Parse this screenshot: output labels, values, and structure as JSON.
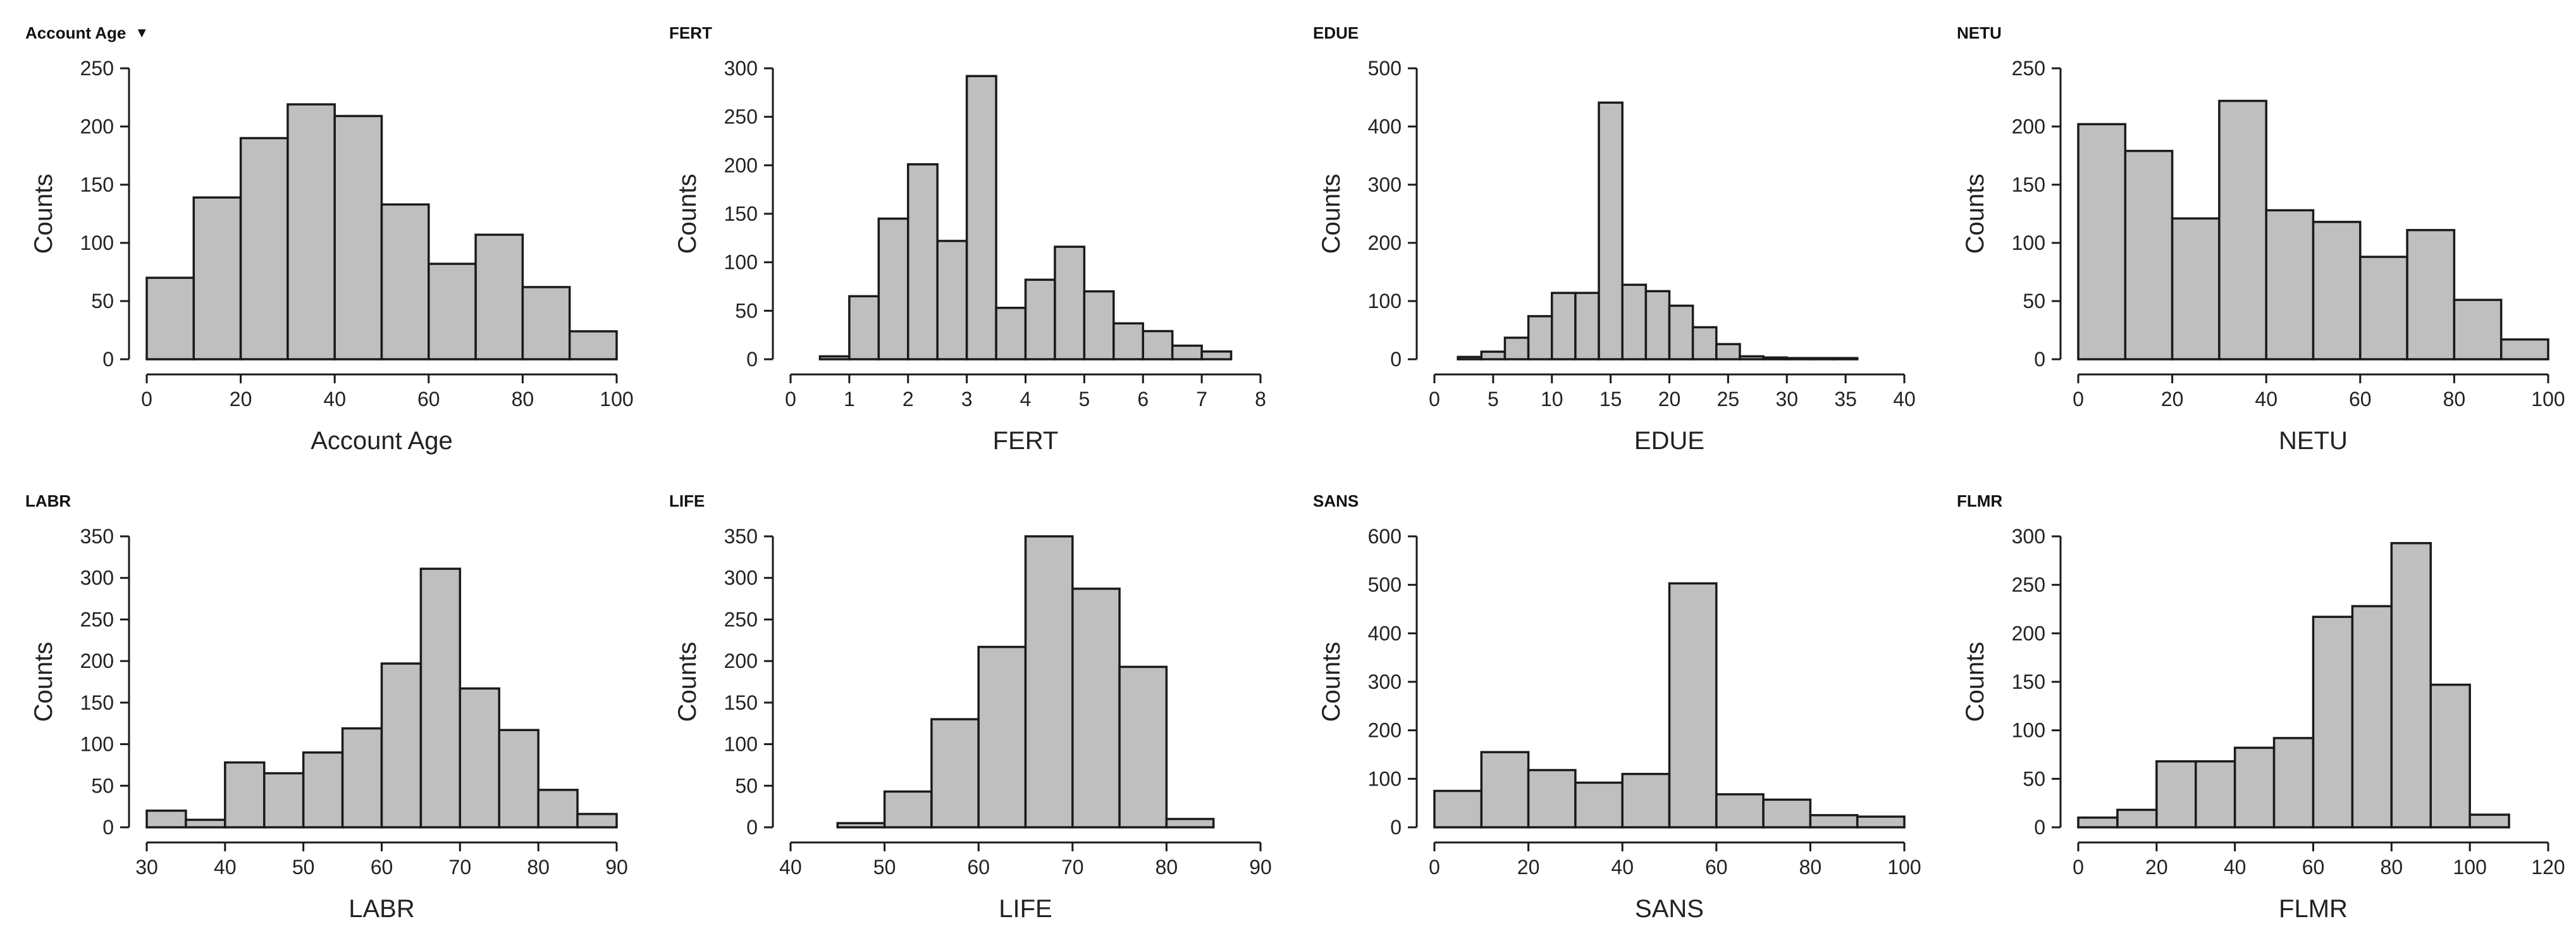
{
  "colors": {
    "bar_fill": "#bfbfbf",
    "bar_stroke": "#1a1a1a",
    "text": "#222222",
    "background": "#ffffff"
  },
  "chart_data": [
    {
      "type": "bar",
      "header": "Account Age",
      "header_icon": "dropdown-triangle",
      "header_glyph": "▼",
      "xlabel": "Account Age",
      "ylabel": "Counts",
      "xlim": [
        0,
        100
      ],
      "ylim": [
        0,
        250
      ],
      "xticks": [
        0,
        20,
        40,
        60,
        80,
        100
      ],
      "yticks": [
        0,
        50,
        100,
        150,
        200,
        250
      ],
      "bins": [
        [
          0,
          10
        ],
        [
          10,
          20
        ],
        [
          20,
          30
        ],
        [
          30,
          40
        ],
        [
          40,
          50
        ],
        [
          50,
          60
        ],
        [
          60,
          70
        ],
        [
          70,
          80
        ],
        [
          80,
          90
        ],
        [
          90,
          100
        ]
      ],
      "values": [
        70,
        139,
        190,
        219,
        209,
        133,
        82,
        107,
        62,
        24
      ]
    },
    {
      "type": "bar",
      "header": "FERT",
      "xlabel": "FERT",
      "ylabel": "Counts",
      "xlim": [
        0,
        8
      ],
      "ylim": [
        0,
        300
      ],
      "xticks": [
        0,
        1,
        2,
        3,
        4,
        5,
        6,
        7,
        8
      ],
      "yticks": [
        0,
        50,
        100,
        150,
        200,
        250,
        300
      ],
      "bins": [
        [
          0.5,
          1
        ],
        [
          1,
          1.5
        ],
        [
          1.5,
          2
        ],
        [
          2,
          2.5
        ],
        [
          2.5,
          3
        ],
        [
          3,
          3.5
        ],
        [
          3.5,
          4
        ],
        [
          4,
          4.5
        ],
        [
          4.5,
          5
        ],
        [
          5,
          5.5
        ],
        [
          5.5,
          6
        ],
        [
          6,
          6.5
        ],
        [
          6.5,
          7
        ],
        [
          7,
          7.5
        ]
      ],
      "values": [
        3,
        65,
        145,
        201,
        122,
        292,
        53,
        82,
        116,
        70,
        37,
        29,
        14,
        8
      ]
    },
    {
      "type": "bar",
      "header": "EDUE",
      "xlabel": "EDUE",
      "ylabel": "Counts",
      "xlim": [
        0,
        40
      ],
      "ylim": [
        0,
        500
      ],
      "xticks": [
        0,
        5,
        10,
        15,
        20,
        25,
        30,
        35,
        40
      ],
      "yticks": [
        0,
        100,
        200,
        300,
        400,
        500
      ],
      "bins": [
        [
          2,
          4
        ],
        [
          4,
          6
        ],
        [
          6,
          8
        ],
        [
          8,
          10
        ],
        [
          10,
          12
        ],
        [
          12,
          14
        ],
        [
          14,
          16
        ],
        [
          16,
          18
        ],
        [
          18,
          20
        ],
        [
          20,
          22
        ],
        [
          22,
          24
        ],
        [
          24,
          26
        ],
        [
          26,
          28
        ],
        [
          28,
          30
        ],
        [
          30,
          32
        ],
        [
          32,
          34
        ],
        [
          34,
          36
        ]
      ],
      "values": [
        4,
        13,
        37,
        74,
        114,
        114,
        441,
        128,
        117,
        92,
        55,
        26,
        5,
        3,
        2,
        2,
        2
      ]
    },
    {
      "type": "bar",
      "header": "NETU",
      "xlabel": "NETU",
      "ylabel": "Counts",
      "xlim": [
        0,
        100
      ],
      "ylim": [
        0,
        250
      ],
      "xticks": [
        0,
        20,
        40,
        60,
        80,
        100
      ],
      "yticks": [
        0,
        50,
        100,
        150,
        200,
        250
      ],
      "bins": [
        [
          0,
          10
        ],
        [
          10,
          20
        ],
        [
          20,
          30
        ],
        [
          30,
          40
        ],
        [
          40,
          50
        ],
        [
          50,
          60
        ],
        [
          60,
          70
        ],
        [
          70,
          80
        ],
        [
          80,
          90
        ],
        [
          90,
          100
        ]
      ],
      "values": [
        202,
        179,
        121,
        222,
        128,
        118,
        88,
        111,
        51,
        17
      ]
    },
    {
      "type": "bar",
      "header": "LABR",
      "xlabel": "LABR",
      "ylabel": "Counts",
      "xlim": [
        30,
        90
      ],
      "ylim": [
        0,
        350
      ],
      "xticks": [
        30,
        40,
        50,
        60,
        70,
        80,
        90
      ],
      "yticks": [
        0,
        50,
        100,
        150,
        200,
        250,
        300,
        350
      ],
      "bins": [
        [
          30,
          35
        ],
        [
          35,
          40
        ],
        [
          40,
          45
        ],
        [
          45,
          50
        ],
        [
          50,
          55
        ],
        [
          55,
          60
        ],
        [
          60,
          65
        ],
        [
          65,
          70
        ],
        [
          70,
          75
        ],
        [
          75,
          80
        ],
        [
          80,
          85
        ],
        [
          85,
          90
        ]
      ],
      "values": [
        20,
        9,
        78,
        65,
        90,
        119,
        197,
        311,
        167,
        117,
        45,
        16
      ]
    },
    {
      "type": "bar",
      "header": "LIFE",
      "xlabel": "LIFE",
      "ylabel": "Counts",
      "xlim": [
        40,
        90
      ],
      "ylim": [
        0,
        350
      ],
      "xticks": [
        40,
        50,
        60,
        70,
        80,
        90
      ],
      "yticks": [
        0,
        50,
        100,
        150,
        200,
        250,
        300,
        350
      ],
      "bins": [
        [
          45,
          50
        ],
        [
          50,
          55
        ],
        [
          55,
          60
        ],
        [
          60,
          65
        ],
        [
          65,
          70
        ],
        [
          70,
          75
        ],
        [
          75,
          80
        ],
        [
          80,
          85
        ]
      ],
      "values": [
        5,
        43,
        130,
        217,
        350,
        287,
        193,
        10
      ]
    },
    {
      "type": "bar",
      "header": "SANS",
      "xlabel": "SANS",
      "ylabel": "Counts",
      "xlim": [
        0,
        100
      ],
      "ylim": [
        0,
        600
      ],
      "xticks": [
        0,
        20,
        40,
        60,
        80,
        100
      ],
      "yticks": [
        0,
        100,
        200,
        300,
        400,
        500,
        600
      ],
      "bins": [
        [
          0,
          10
        ],
        [
          10,
          20
        ],
        [
          20,
          30
        ],
        [
          30,
          40
        ],
        [
          40,
          50
        ],
        [
          50,
          60
        ],
        [
          60,
          70
        ],
        [
          70,
          80
        ],
        [
          80,
          90
        ],
        [
          90,
          100
        ]
      ],
      "values": [
        75,
        155,
        118,
        92,
        110,
        503,
        68,
        57,
        25,
        22
      ]
    },
    {
      "type": "bar",
      "header": "FLMR",
      "xlabel": "FLMR",
      "ylabel": "Counts",
      "xlim": [
        0,
        120
      ],
      "ylim": [
        0,
        300
      ],
      "xticks": [
        0,
        20,
        40,
        60,
        80,
        100,
        120
      ],
      "yticks": [
        0,
        50,
        100,
        150,
        200,
        250,
        300
      ],
      "bins": [
        [
          0,
          10
        ],
        [
          10,
          20
        ],
        [
          20,
          30
        ],
        [
          30,
          40
        ],
        [
          40,
          50
        ],
        [
          50,
          60
        ],
        [
          60,
          70
        ],
        [
          70,
          80
        ],
        [
          80,
          90
        ],
        [
          90,
          100
        ],
        [
          100,
          110
        ]
      ],
      "values": [
        10,
        18,
        68,
        68,
        82,
        92,
        217,
        228,
        293,
        147,
        13
      ]
    }
  ]
}
